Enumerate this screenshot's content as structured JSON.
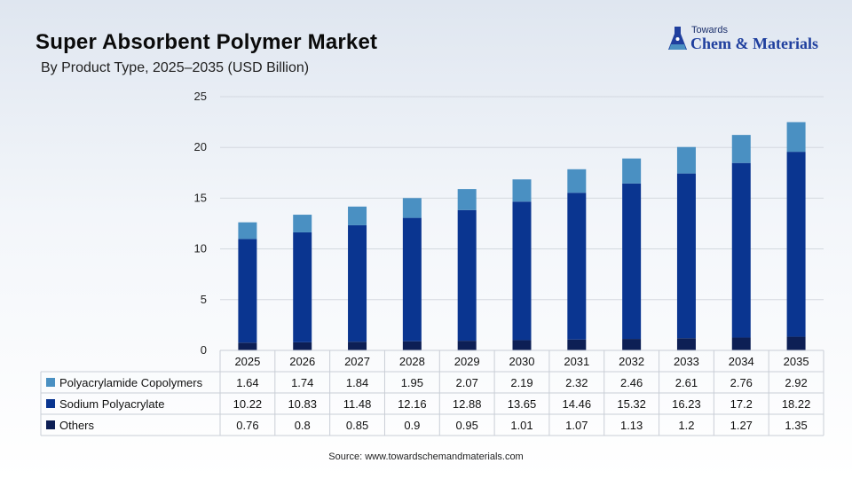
{
  "header": {
    "title": "Super Absorbent Polymer Market",
    "subtitle": "By Product Type, 2025–2035 (USD Billion)"
  },
  "logo": {
    "small_text": "Towards",
    "main_text": "Chem & Materials"
  },
  "source": "Source: www.towardschemandmaterials.com",
  "chart_data": {
    "type": "bar",
    "stacked": true,
    "categories": [
      "2025",
      "2026",
      "2027",
      "2028",
      "2029",
      "2030",
      "2031",
      "2032",
      "2033",
      "2034",
      "2035"
    ],
    "series": [
      {
        "name": "Others",
        "color": "#0d1f55",
        "values": [
          0.76,
          0.8,
          0.85,
          0.9,
          0.95,
          1.01,
          1.07,
          1.13,
          1.2,
          1.27,
          1.35
        ],
        "labels": [
          "0.76",
          "0.8",
          "0.85",
          "0.9",
          "0.95",
          "1.01",
          "1.07",
          "1.13",
          "1.2",
          "1.27",
          "1.35"
        ]
      },
      {
        "name": "Sodium Polyacrylate",
        "color": "#0a3590",
        "values": [
          10.22,
          10.83,
          11.48,
          12.16,
          12.88,
          13.65,
          14.46,
          15.32,
          16.23,
          17.2,
          18.22
        ],
        "labels": [
          "10.22",
          "10.83",
          "11.48",
          "12.16",
          "12.88",
          "13.65",
          "14.46",
          "15.32",
          "16.23",
          "17.2",
          "18.22"
        ]
      },
      {
        "name": "Polyacrylamide Copolymers",
        "color": "#4a90c2",
        "values": [
          1.64,
          1.74,
          1.84,
          1.95,
          2.07,
          2.19,
          2.32,
          2.46,
          2.61,
          2.76,
          2.92
        ],
        "labels": [
          "1.64",
          "1.74",
          "1.84",
          "1.95",
          "2.07",
          "2.19",
          "2.32",
          "2.46",
          "2.61",
          "2.76",
          "2.92"
        ]
      }
    ],
    "table_order": [
      "Polyacrylamide Copolymers",
      "Sodium Polyacrylate",
      "Others"
    ],
    "yticks": [
      "0",
      "5",
      "10",
      "15",
      "20",
      "25"
    ],
    "ylim": [
      0,
      25
    ],
    "grid": true,
    "legend": "data-table"
  }
}
